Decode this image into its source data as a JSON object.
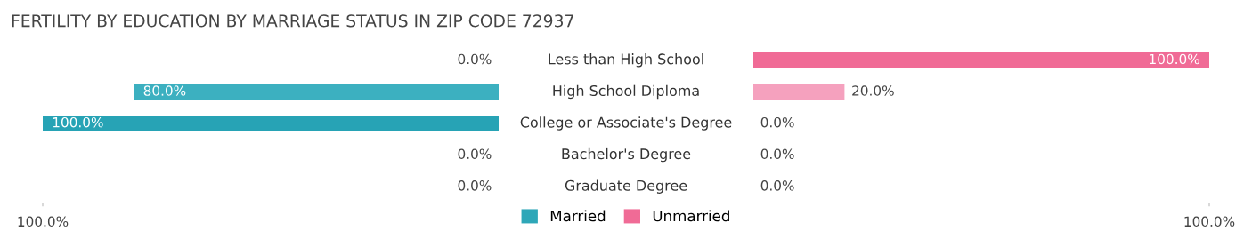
{
  "chart_data": [
    {
      "type": "bar",
      "orientation": "horizontal",
      "title": "FERTILITY BY EDUCATION BY MARRIAGE STATUS IN ZIP CODE 72937",
      "categories": [
        "Less than High School",
        "High School Diploma",
        "College or Associate's Degree",
        "Bachelor's Degree",
        "Graduate Degree"
      ],
      "series": [
        {
          "name": "Married",
          "color": "#2ea7b8",
          "colors": [
            "#8ed0d9",
            "#3cb0c0",
            "#27a3b5",
            "#8ed0d9",
            "#8ed0d9"
          ],
          "values": [
            0,
            80,
            100,
            0,
            0
          ],
          "value_labels": [
            "0.0%",
            "80.0%",
            "100.0%",
            "0.0%",
            "0.0%"
          ]
        }
      ],
      "xlim": [
        100,
        0
      ],
      "xticks": [
        {
          "value": 100,
          "label": "100.0%"
        }
      ],
      "legend": "bottom"
    },
    {
      "type": "bar",
      "orientation": "horizontal",
      "categories": [
        null,
        null,
        null,
        null,
        null
      ],
      "series": [
        {
          "name": "Unmarried",
          "color": "#f06b96",
          "colors": [
            "#f06b96",
            "#f5a1be",
            "#f7bcd0",
            "#f7bcd0",
            "#f7bcd0"
          ],
          "values": [
            100,
            20,
            0,
            0,
            0
          ],
          "value_labels": [
            "100.0%",
            "20.0%",
            "0.0%",
            "0.0%",
            "0.0%"
          ]
        }
      ],
      "xlim": [
        0,
        100
      ],
      "xticks": [
        {
          "value": 100,
          "label": "100.0%"
        }
      ],
      "legend": "bottom"
    }
  ]
}
